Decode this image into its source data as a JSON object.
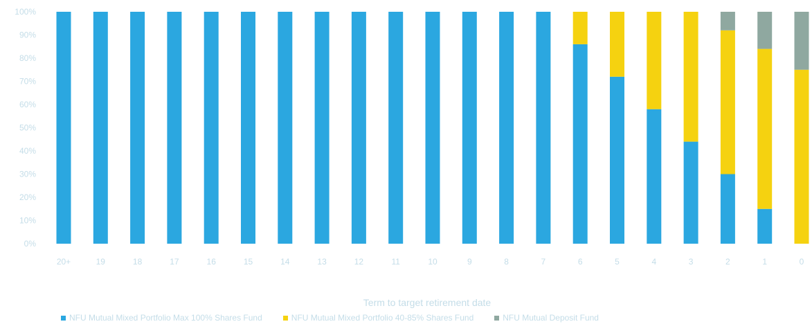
{
  "chart_data": {
    "type": "bar",
    "stacked": true,
    "categories": [
      "20+",
      "19",
      "18",
      "17",
      "16",
      "15",
      "14",
      "13",
      "12",
      "11",
      "10",
      "9",
      "8",
      "7",
      "6",
      "5",
      "4",
      "3",
      "2",
      "1",
      "0"
    ],
    "series": [
      {
        "name": "NFU Mutual Mixed Portfolio Max 100% Shares Fund",
        "color": "#2ba7e0",
        "values": [
          100,
          100,
          100,
          100,
          100,
          100,
          100,
          100,
          100,
          100,
          100,
          100,
          100,
          100,
          86,
          72,
          58,
          44,
          30,
          15,
          0
        ]
      },
      {
        "name": "NFU Mutual Mixed Portfolio 40-85% Shares Fund",
        "color": "#f5d210",
        "values": [
          0,
          0,
          0,
          0,
          0,
          0,
          0,
          0,
          0,
          0,
          0,
          0,
          0,
          0,
          14,
          28,
          42,
          56,
          62,
          69,
          75
        ]
      },
      {
        "name": "NFU Mutual Deposit Fund",
        "color": "#8fa8a0",
        "values": [
          0,
          0,
          0,
          0,
          0,
          0,
          0,
          0,
          0,
          0,
          0,
          0,
          0,
          0,
          0,
          0,
          0,
          0,
          8,
          16,
          25
        ]
      }
    ],
    "y_ticks": [
      "0%",
      "10%",
      "20%",
      "30%",
      "40%",
      "50%",
      "60%",
      "70%",
      "80%",
      "90%",
      "100%"
    ],
    "ylim": [
      0,
      100
    ],
    "xlabel": "Term to target retirement date",
    "ylabel": "",
    "title": "",
    "grid": false,
    "legend_position": "bottom"
  }
}
